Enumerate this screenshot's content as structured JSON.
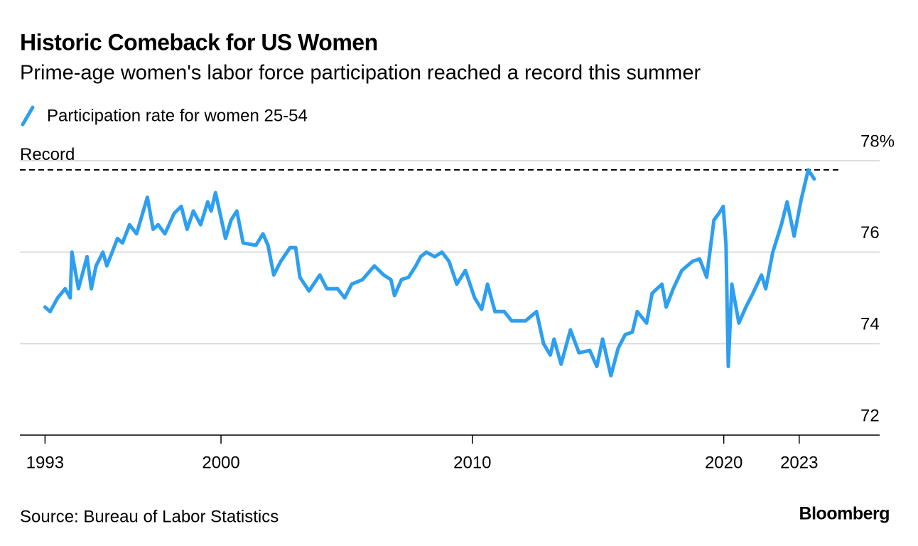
{
  "chart_data": {
    "type": "line",
    "title": "Historic Comeback for US Women",
    "subtitle": "Prime-age women's labor force participation reached a record this summer",
    "source": "Source: Bureau of Labor Statistics",
    "brand": "Bloomberg",
    "annotations": [
      {
        "label": "Record",
        "value": 77.8
      }
    ],
    "xlim": [
      1992,
      2026.2
    ],
    "xticks": [
      1993,
      2000,
      2010,
      2020,
      2023
    ],
    "ylim": [
      72,
      78
    ],
    "yticks": [
      72,
      74,
      76,
      {
        "value": 78,
        "label": "78%"
      }
    ],
    "grid": true,
    "legend": "top-left",
    "series": [
      {
        "name": "Participation rate for women 25-54",
        "color": "#2e9ff0",
        "x": [
          1993.0,
          1993.2,
          1993.5,
          1993.8,
          1994.0,
          1994.07,
          1994.33,
          1994.67,
          1994.84,
          1995.03,
          1995.3,
          1995.46,
          1995.88,
          1996.08,
          1996.36,
          1996.64,
          1997.07,
          1997.3,
          1997.5,
          1997.77,
          1998.14,
          1998.42,
          1998.65,
          1998.9,
          1999.19,
          1999.47,
          1999.61,
          1999.78,
          2000.18,
          2000.4,
          2000.63,
          2000.88,
          2001.39,
          2001.67,
          2001.87,
          2002.1,
          2002.38,
          2002.75,
          2002.97,
          2003.14,
          2003.5,
          2003.93,
          2004.21,
          2004.64,
          2004.92,
          2005.2,
          2005.63,
          2006.1,
          2006.47,
          2006.76,
          2006.9,
          2007.18,
          2007.46,
          2007.75,
          2007.94,
          2008.17,
          2008.5,
          2008.79,
          2009.07,
          2009.38,
          2009.72,
          2010.09,
          2010.37,
          2010.6,
          2010.9,
          2011.27,
          2011.56,
          2012.12,
          2012.55,
          2012.83,
          2013.1,
          2013.25,
          2013.53,
          2013.9,
          2014.24,
          2014.67,
          2014.95,
          2015.18,
          2015.51,
          2015.8,
          2016.08,
          2016.36,
          2016.56,
          2016.93,
          2017.15,
          2017.54,
          2017.71,
          2017.99,
          2018.33,
          2018.76,
          2019.04,
          2019.32,
          2019.61,
          2019.81,
          2019.98,
          2020.09,
          2020.18,
          2020.32,
          2020.6,
          2020.88,
          2021.16,
          2021.5,
          2021.67,
          2021.95,
          2022.29,
          2022.52,
          2022.8,
          2023.08,
          2023.36,
          2023.6
        ],
        "values": [
          74.8,
          74.7,
          75.0,
          75.2,
          75.0,
          76.0,
          75.2,
          75.9,
          75.2,
          75.7,
          76.0,
          75.7,
          76.3,
          76.2,
          76.6,
          76.4,
          77.2,
          76.5,
          76.6,
          76.4,
          76.85,
          77.0,
          76.5,
          76.9,
          76.6,
          77.1,
          76.9,
          77.3,
          76.3,
          76.7,
          76.9,
          76.2,
          76.15,
          76.4,
          76.15,
          75.5,
          75.8,
          76.1,
          76.1,
          75.45,
          75.15,
          75.5,
          75.2,
          75.2,
          75.0,
          75.3,
          75.4,
          75.7,
          75.5,
          75.4,
          75.05,
          75.4,
          75.45,
          75.7,
          75.9,
          76.0,
          75.9,
          76.0,
          75.8,
          75.3,
          75.6,
          75.0,
          74.75,
          75.3,
          74.7,
          74.7,
          74.5,
          74.5,
          74.7,
          74.0,
          73.75,
          74.1,
          73.55,
          74.3,
          73.8,
          73.85,
          73.5,
          74.1,
          73.3,
          73.9,
          74.2,
          74.25,
          74.7,
          74.45,
          75.1,
          75.3,
          74.8,
          75.2,
          75.6,
          75.8,
          75.85,
          75.45,
          76.7,
          76.85,
          77.0,
          76.15,
          73.5,
          75.3,
          74.45,
          74.8,
          75.1,
          75.5,
          75.2,
          76.0,
          76.6,
          77.1,
          76.35,
          77.15,
          77.8,
          77.6
        ]
      }
    ]
  }
}
